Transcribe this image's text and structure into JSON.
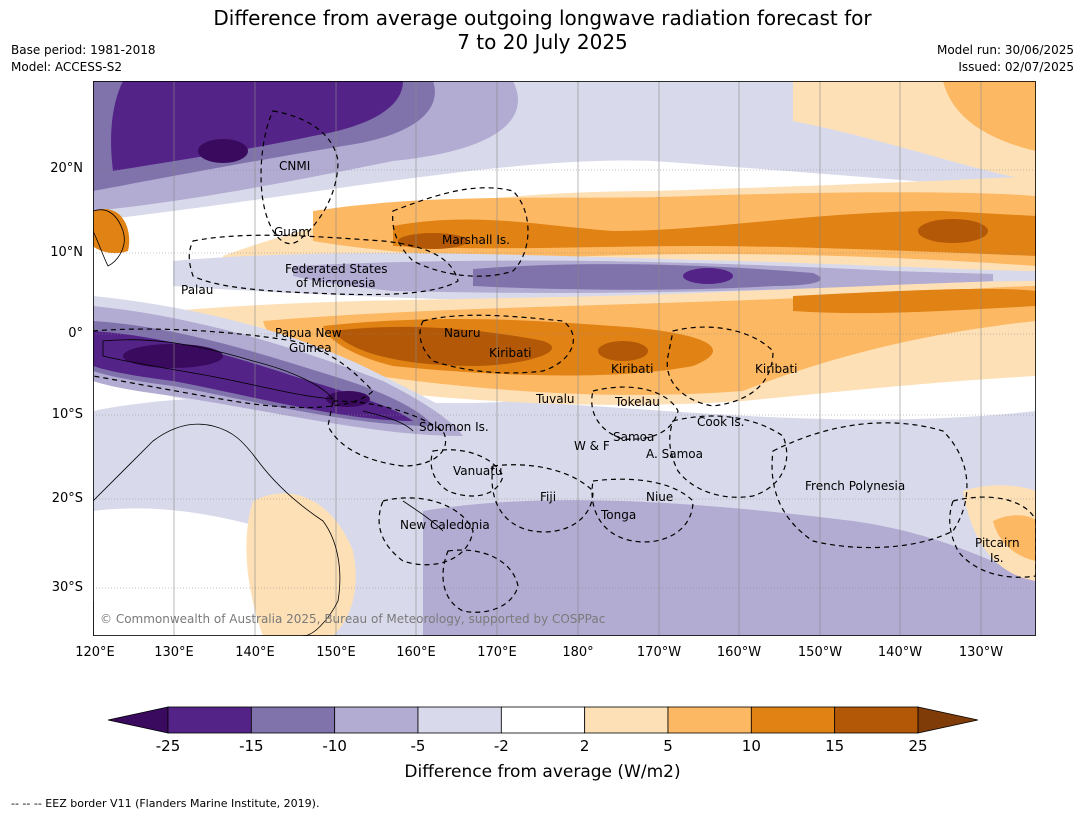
{
  "title_line1": "Difference from average outgoing longwave radiation forecast for",
  "title_line2": "7 to 20 July 2025",
  "base_period": "Base period: 1981-2018",
  "model": "Model: ACCESS-S2",
  "model_run": "Model run: 30/06/2025",
  "issued": "Issued: 02/07/2025",
  "lat_labels": [
    "20°N",
    "10°N",
    "0°",
    "10°S",
    "20°S",
    "30°S"
  ],
  "lon_labels": [
    "120°E",
    "130°E",
    "140°E",
    "150°E",
    "160°E",
    "170°E",
    "180°",
    "170°W",
    "160°W",
    "150°W",
    "140°W",
    "130°W"
  ],
  "region_labels": {
    "cnmi": "CNMI",
    "guam": "Guam",
    "marshall": "Marshall Is.",
    "fsm1": "Federated States",
    "fsm2": "of Micronesia",
    "palau": "Palau",
    "png1": "Papua New",
    "png2": "Guinea",
    "nauru": "Nauru",
    "kiribati1": "Kiribati",
    "kiribati2": "Kiribati",
    "kiribati3": "Kiribati",
    "tuvalu": "Tuvalu",
    "tokelau": "Tokelau",
    "cook": "Cook Is.",
    "solomon": "Solomon Is.",
    "samoa": "Samoa",
    "wf": "W & F",
    "asamoa": "A. Samoa",
    "vanuatu": "Vanuatu",
    "fiji": "Fiji",
    "niue": "Niue",
    "tonga": "Tonga",
    "newcal": "New Caledonia",
    "frenchpoly": "French Polynesia",
    "pitcairn1": "Pitcairn",
    "pitcairn2": "Is."
  },
  "credit": "© Commonwealth of Australia 2025, Bureau of Meteorology, supported by COSPPac",
  "colorbar": {
    "ticks": [
      "-25",
      "-15",
      "-10",
      "-5",
      "-2",
      "2",
      "5",
      "10",
      "15",
      "25"
    ],
    "colors": [
      "#3a0a5e",
      "#542388",
      "#8073ac",
      "#b2abd2",
      "#d8daeb",
      "#ffffff",
      "#fee0b6",
      "#fdb863",
      "#e08214",
      "#b35806",
      "#7f3b08"
    ],
    "label": "Difference from average (W/m2)"
  },
  "footnote": "--  --  -- EEZ border V11 (Flanders Marine Institute, 2019)."
}
